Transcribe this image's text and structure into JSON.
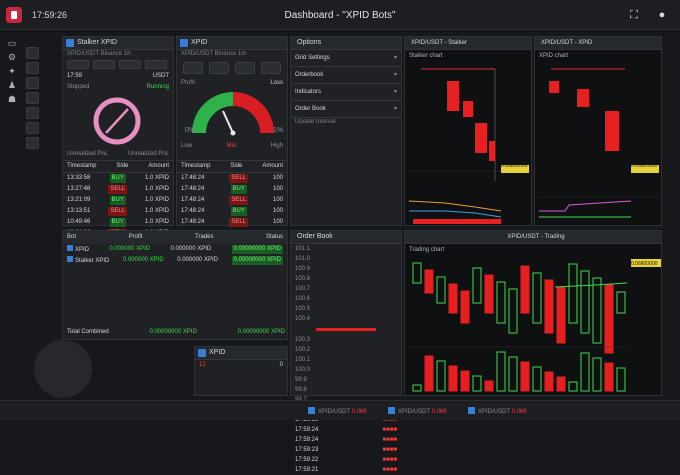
{
  "header": {
    "clock": "17:59:26",
    "title": "Dashboard - \"XPID Bots\"",
    "expand_icon": "expand-icon",
    "bell_icon": "bell-icon"
  },
  "left_nav": [
    "menu-icon",
    "settings-icon",
    "star-icon",
    "user-icon",
    "people-icon"
  ],
  "panels": {
    "bot1": {
      "title": "Stalker XPID",
      "subtitle": "XPID/USDT Binance 1h",
      "status_left": "17:59",
      "status_right": "USDT",
      "label_a": "Stopped",
      "value_a": "Running",
      "footer_left": "Unrealized PnL",
      "footer_right": "Unrealized PnL",
      "table_headers": [
        "Timestamp",
        "Side",
        "Amount"
      ],
      "rows": [
        {
          "t": "13:33:58",
          "side": "BUY",
          "amt": "1.0 XPID"
        },
        {
          "t": "13:27:48",
          "side": "SELL",
          "amt": "1.0 XPID"
        },
        {
          "t": "13:21:09",
          "side": "BUY",
          "amt": "1.0 XPID"
        },
        {
          "t": "13:13:51",
          "side": "SELL",
          "amt": "1.0 XPID"
        },
        {
          "t": "10:49:46",
          "side": "BUY",
          "amt": "1.0 XPID"
        },
        {
          "t": "10:31:18",
          "side": "SELL",
          "amt": "1.0 XPID"
        },
        {
          "t": "09:40:05",
          "side": "BUY",
          "amt": "1.0 XPID"
        }
      ]
    },
    "bot2": {
      "title": "XPID",
      "subtitle": "XPID/USDT Binance 1m",
      "label_a": "Profit",
      "value_a": "Loss",
      "gauge_left": "0%",
      "gauge_right": "1%",
      "gauge_low": "Low",
      "gauge_mid": "Mid",
      "gauge_high": "High",
      "table_headers": [
        "Timestamp",
        "Side",
        "Amount"
      ],
      "rows": [
        {
          "t": "17:48:24",
          "side": "SELL",
          "amt": "100"
        },
        {
          "t": "17:48:24",
          "side": "BUY",
          "amt": "100"
        },
        {
          "t": "17:48:24",
          "side": "SELL",
          "amt": "100"
        },
        {
          "t": "17:48:24",
          "side": "BUY",
          "amt": "100"
        },
        {
          "t": "17:48:24",
          "side": "SELL",
          "amt": "100"
        }
      ]
    },
    "settings": {
      "title": "Options",
      "items": [
        "Grid Settings",
        "Orderbook",
        "Indicators",
        "Order Book"
      ],
      "sub": "Update Interval"
    },
    "balances": {
      "headers": [
        "Bot",
        "Profit",
        "Trades",
        "Status"
      ],
      "rows": [
        {
          "name": "XPID",
          "profit": "0.000000 XPID",
          "trades": "0.000000 XPID",
          "value": "0.00000000 XPID"
        },
        {
          "name": "Stalker XPID",
          "profit": "0.000000 XPID",
          "trades": "0.000000 XPID",
          "value": "0.00000000 XPID"
        }
      ],
      "total_label": "Total Combined",
      "total_a": "0.00000000 XPID",
      "total_b": "0.00000000 XPID"
    },
    "orderbook": {
      "title": "Order Book",
      "asks": [
        "101.1",
        "101.0",
        "100.9",
        "100.8",
        "100.7",
        "100.6",
        "100.5",
        "100.4"
      ],
      "bids": [
        "100.3",
        "100.2",
        "100.1",
        "100.0",
        "99.9",
        "99.8",
        "99.7"
      ],
      "trades_t": [
        "17:59:25",
        "17:59:25",
        "17:59:24",
        "17:59:24",
        "17:59:23",
        "17:59:22",
        "17:59:21"
      ]
    },
    "chart1": {
      "title": "XPID/USDT - Stalker",
      "sub": "Stalker chart",
      "price_tag": "0.06800000"
    },
    "chart2": {
      "title": "XPID/USDT - XPID",
      "sub": "XPID chart",
      "price_tag": "0.06800000"
    },
    "chart3": {
      "title": "XPID/USDT - Trading",
      "sub": "Trading chart",
      "price_tag": "0.06800000"
    },
    "mini": {
      "title": "XPID",
      "value_a": "12",
      "value_b": "0"
    }
  },
  "footer": {
    "items": [
      {
        "label": "XPID/USDT",
        "value": "0.068"
      },
      {
        "label": "XPID/USDT",
        "value": "0.068"
      },
      {
        "label": "XPID/USDT",
        "value": "0.068"
      }
    ]
  },
  "colors": {
    "up": "#3ddc4a",
    "down": "#ff3a3a",
    "accent": "#3a7fd5"
  }
}
